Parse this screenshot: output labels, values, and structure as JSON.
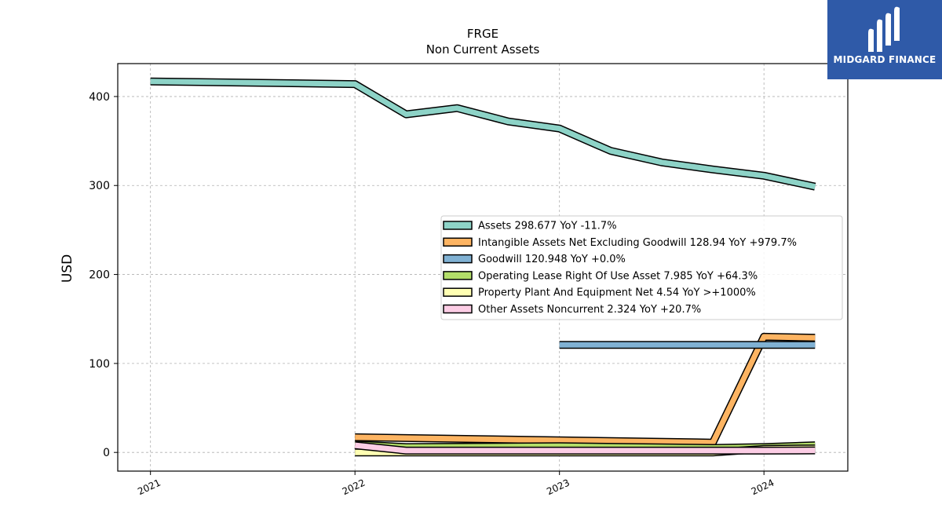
{
  "brand": {
    "name": "MIDGARD FINANCE",
    "bg": "#2f5aa8"
  },
  "chart_data": {
    "type": "line",
    "title": "FRGE",
    "subtitle": "Non Current  Assets",
    "ylabel": "USD",
    "xlabel": "",
    "xlim": [
      2020.84,
      2024.41
    ],
    "ylim": [
      -21,
      437
    ],
    "x_ticks": [
      2021,
      2022,
      2023,
      2024
    ],
    "x_tick_labels": [
      "2021",
      "2022",
      "2023",
      "2024"
    ],
    "y_ticks": [
      0,
      100,
      200,
      300,
      400
    ],
    "y_tick_labels": [
      "0",
      "100",
      "200",
      "300",
      "400"
    ],
    "grid": true,
    "legend_position": "center-right",
    "series": [
      {
        "name": "Assets",
        "legend": "Assets  298.677 YoY -11.7%",
        "color": "#8dd3c7",
        "x": [
          2021.0,
          2022.0,
          2022.25,
          2022.5,
          2022.75,
          2023.0,
          2023.25,
          2023.5,
          2023.75,
          2024.0,
          2024.25
        ],
        "y": [
          417,
          414,
          380,
          387,
          372,
          364,
          339,
          326,
          318,
          311,
          298.7
        ]
      },
      {
        "name": "Intangible Assets Net Excluding Goodwill",
        "legend": "Intangible Assets Net Excluding Goodwill  128.94 YoY +979.7%",
        "color": "#fdb462",
        "x": [
          2022.0,
          2023.75,
          2024.0,
          2024.25
        ],
        "y": [
          17,
          11,
          130,
          128.9
        ]
      },
      {
        "name": "Goodwill",
        "legend": "Goodwill  120.948 YoY +0.0%",
        "color": "#80b1d3",
        "x": [
          2023.0,
          2024.25
        ],
        "y": [
          120.9,
          120.9
        ]
      },
      {
        "name": "Operating Lease Right Of Use Asset",
        "legend": "Operating Lease Right Of Use Asset  7.985 YoY +64.3%",
        "color": "#b3de69",
        "x": [
          2022.0,
          2022.25,
          2023.0,
          2023.75,
          2024.0,
          2024.25
        ],
        "y": [
          9,
          6,
          7,
          5,
          6,
          8
        ]
      },
      {
        "name": "Property Plant And Equipment Net",
        "legend": "Property Plant And Equipment Net  4.54 YoY >+1000%",
        "color": "#ffffb3",
        "x": [
          2022.0,
          2022.25,
          2023.0,
          2023.75,
          2024.0,
          2024.25
        ],
        "y": [
          0,
          0,
          0,
          0,
          4,
          4.5
        ]
      },
      {
        "name": "Other Assets Noncurrent",
        "legend": "Other Assets Noncurrent  2.324 YoY +20.7%",
        "color": "#fccde5",
        "x": [
          2022.0,
          2022.25,
          2023.0,
          2023.75,
          2024.0,
          2024.25
        ],
        "y": [
          8,
          2,
          2,
          2,
          2,
          2.3
        ]
      }
    ]
  }
}
